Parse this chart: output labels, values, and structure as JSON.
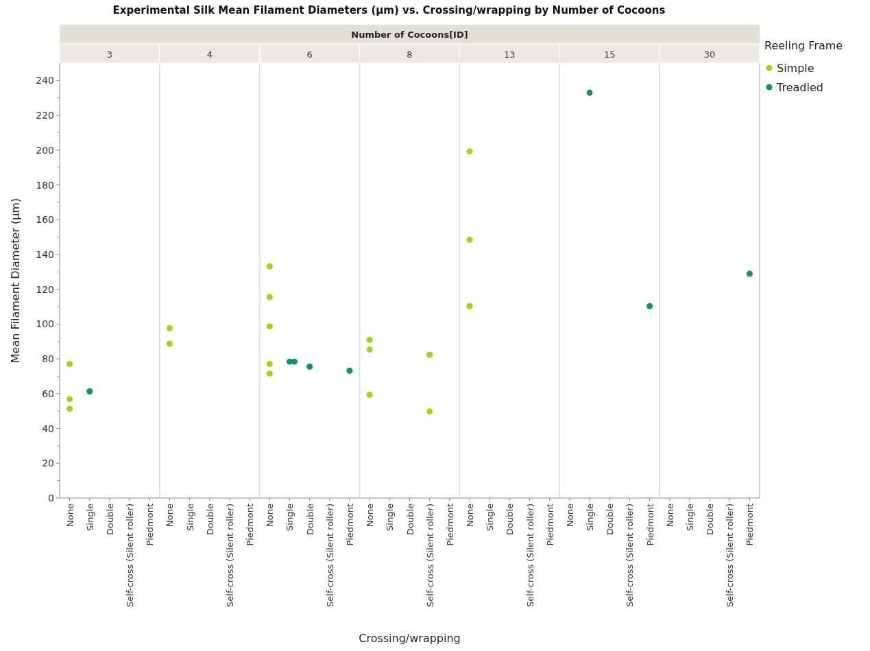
{
  "chart_data": [
    {
      "type": "scatter",
      "subtitle": "3",
      "ylabel": "Mean Filament Diameter (µm)",
      "legend_title": "Reeling Frame",
      "legend": "right",
      "marker": "circle",
      "categories": [
        "None",
        "Single",
        "Double",
        "Self-cross (Silent roller)",
        "Piedmont"
      ],
      "ylim": [
        0,
        250
      ],
      "yticks": [
        0,
        {
          "value": 10,
          "label": null
        },
        20,
        {
          "value": 30,
          "label": null
        },
        40,
        {
          "value": 50,
          "label": null
        },
        60,
        {
          "value": 70,
          "label": null
        },
        80,
        {
          "value": 90,
          "label": null
        },
        100,
        {
          "value": 110,
          "label": null
        },
        120,
        {
          "value": 130,
          "label": null
        },
        140,
        {
          "value": 150,
          "label": null
        },
        160,
        {
          "value": 170,
          "label": null
        },
        180,
        {
          "value": 190,
          "label": null
        },
        200,
        {
          "value": 210,
          "label": null
        },
        220,
        {
          "value": 230,
          "label": null
        },
        240
      ],
      "series": [
        {
          "name": "Simple",
          "color": "#9fd616",
          "x": [
            "None",
            "None",
            "None"
          ],
          "values": [
            77.1,
            56.9,
            51.3
          ]
        },
        {
          "name": "Treadled",
          "color": "#0b9372",
          "x": [
            "Single"
          ],
          "values": [
            61.3
          ]
        }
      ]
    },
    {
      "type": "scatter",
      "subtitle": "4",
      "tick_labels": "x",
      "marker": "circle",
      "categories": [
        "None",
        "Single",
        "Double",
        "Self-cross (Silent roller)",
        "Piedmont"
      ],
      "ylim": [
        0,
        250
      ],
      "series": [
        {
          "name": "Simple",
          "color": "#9fd616",
          "x": [
            "None",
            "None"
          ],
          "values": [
            97.6,
            88.7
          ]
        }
      ]
    },
    {
      "type": "scatter",
      "subtitle": "6",
      "tick_labels": "x",
      "marker": "circle",
      "categories": [
        "None",
        "Single",
        "Double",
        "Self-cross (Silent roller)",
        "Piedmont"
      ],
      "ylim": [
        0,
        250
      ],
      "series": [
        {
          "name": "Simple",
          "color": "#9fd616",
          "x": [
            "None",
            "None",
            "None",
            "None",
            "None"
          ],
          "values": [
            133.2,
            115.5,
            98.7,
            77.1,
            71.5
          ]
        },
        {
          "name": "Treadled",
          "color": "#0b9372",
          "x": [
            "Single",
            "Single",
            "Double",
            "Piedmont"
          ],
          "values": [
            78.4,
            78.4,
            75.5,
            73.2
          ]
        }
      ]
    },
    {
      "type": "scatter",
      "title": "Experimental Silk Mean Filament Diameters (µm) vs. Crossing/wrapping by Number of Cocoons",
      "subtitle": "8",
      "annotations": [
        "Number of Cocoons[ID]"
      ],
      "xlabel": "Crossing/wrapping",
      "tick_labels": "x",
      "marker": "circle",
      "categories": [
        "None",
        "Single",
        "Double",
        "Self-cross (Silent roller)",
        "Piedmont"
      ],
      "ylim": [
        0,
        250
      ],
      "series": [
        {
          "name": "Simple",
          "color": "#9fd616",
          "x": [
            "None",
            "None",
            "None",
            "Self-cross (Silent roller)",
            "Self-cross (Silent roller)"
          ],
          "values": [
            91,
            85.3,
            59.4,
            82.3,
            49.8
          ]
        }
      ]
    },
    {
      "type": "scatter",
      "subtitle": "13",
      "tick_labels": "x",
      "marker": "circle",
      "categories": [
        "None",
        "Single",
        "Double",
        "Self-cross (Silent roller)",
        "Piedmont"
      ],
      "ylim": [
        0,
        250
      ],
      "series": [
        {
          "name": "Simple",
          "color": "#9fd616",
          "x": [
            "None",
            "None",
            "None"
          ],
          "values": [
            199.2,
            148.5,
            110.3
          ]
        }
      ]
    },
    {
      "type": "scatter",
      "subtitle": "15",
      "tick_labels": "x",
      "marker": "circle",
      "categories": [
        "None",
        "Single",
        "Double",
        "Self-cross (Silent roller)",
        "Piedmont"
      ],
      "ylim": [
        0,
        250
      ],
      "series": [
        {
          "name": "Treadled",
          "color": "#0b9372",
          "x": [
            "Single",
            "Piedmont"
          ],
          "values": [
            233,
            110.3
          ]
        }
      ]
    },
    {
      "type": "scatter",
      "subtitle": "30",
      "tick_labels": "x",
      "marker": "circle",
      "categories": [
        "None",
        "Single",
        "Double",
        "Self-cross (Silent roller)",
        "Piedmont"
      ],
      "ylim": [
        0,
        250
      ],
      "series": [
        {
          "name": "Treadled",
          "color": "#0b9372",
          "x": [
            "Piedmont"
          ],
          "values": [
            128.9
          ]
        }
      ]
    }
  ]
}
